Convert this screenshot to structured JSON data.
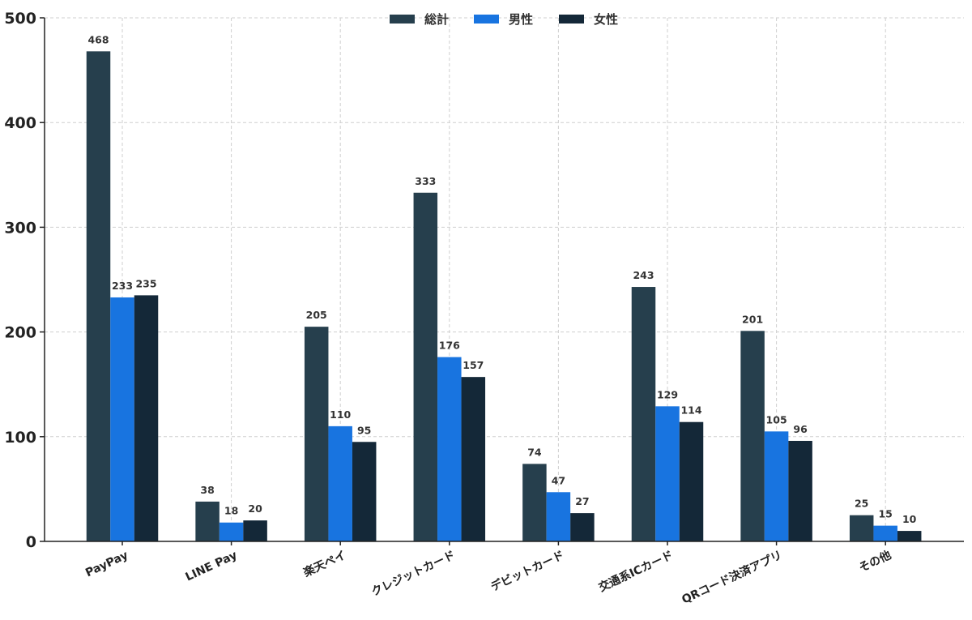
{
  "chart_data": {
    "type": "bar",
    "title": "",
    "xlabel": "",
    "ylabel": "",
    "ylim": [
      0,
      500
    ],
    "yticks": [
      0,
      100,
      200,
      300,
      400,
      500
    ],
    "grid": true,
    "legend_position": "top-center",
    "categories": [
      "PayPay",
      "LINE Pay",
      "楽天ペイ",
      "クレジットカード",
      "デビットカード",
      "交通系ICカード",
      "QRコード決済アプリ",
      "その他"
    ],
    "series": [
      {
        "name": "総計",
        "color": "#263f4d",
        "values": [
          468,
          38,
          205,
          333,
          74,
          243,
          201,
          25
        ]
      },
      {
        "name": "男性",
        "color": "#1874e0",
        "values": [
          233,
          18,
          110,
          176,
          47,
          129,
          105,
          15
        ]
      },
      {
        "name": "女性",
        "color": "#142838",
        "values": [
          235,
          20,
          95,
          157,
          27,
          114,
          96,
          10
        ]
      }
    ]
  }
}
